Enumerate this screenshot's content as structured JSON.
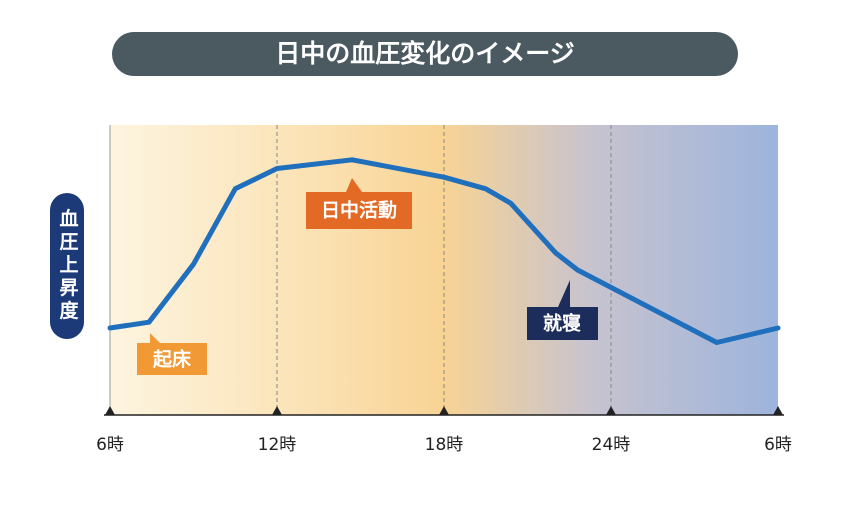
{
  "chart_data": {
    "type": "line",
    "title": "日中の血圧変化のイメージ",
    "ylabel": "血圧上昇度",
    "x": [
      6,
      7.4,
      9,
      10.5,
      12,
      14.7,
      18,
      19.5,
      20.4,
      22,
      22.8,
      27.8,
      30
    ],
    "values": [
      30,
      32,
      52,
      78,
      85,
      88,
      82,
      78,
      73,
      56,
      50,
      25,
      30
    ],
    "color": "#1f6fbd",
    "xlim": [
      6,
      30
    ],
    "xticks": [
      {
        "value": 6,
        "label": "6時"
      },
      {
        "value": 12,
        "label": "12時"
      },
      {
        "value": 18,
        "label": "18時"
      },
      {
        "value": 24,
        "label": "24時"
      },
      {
        "value": 30,
        "label": "6時"
      }
    ],
    "ylim": [
      0,
      100
    ],
    "grid": true,
    "annotations": [
      "起床",
      "日中活動",
      "就寝"
    ]
  }
}
